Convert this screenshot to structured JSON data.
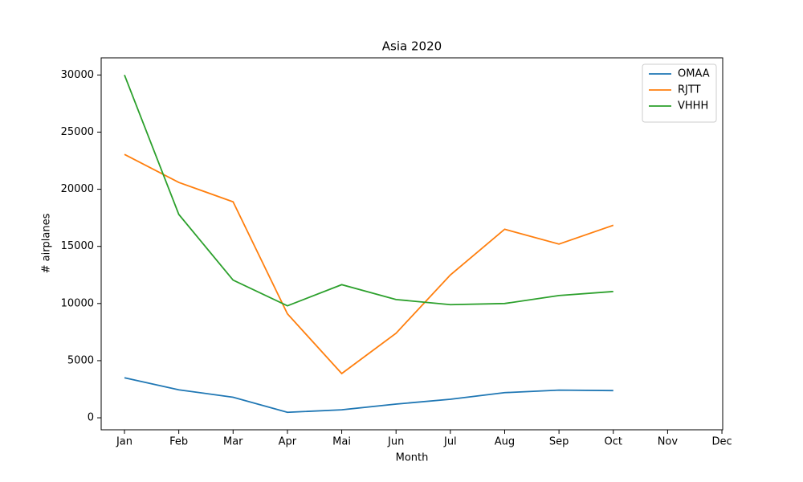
{
  "chart_data": {
    "type": "line",
    "title": "Asia 2020",
    "x_label": "Month",
    "y_label": "# airplanes",
    "categories": [
      "Jan",
      "Feb",
      "Mar",
      "Apr",
      "Mai",
      "Jun",
      "Jul",
      "Aug",
      "Sep",
      "Oct",
      "Nov",
      "Dec"
    ],
    "series": [
      {
        "name": "OMAA",
        "color": "#1f77b4",
        "values": [
          3500,
          2450,
          1800,
          480,
          700,
          1200,
          1620,
          2200,
          2420,
          2380,
          null,
          null
        ]
      },
      {
        "name": "RJTT",
        "color": "#ff7f0e",
        "values": [
          23050,
          20600,
          18900,
          9100,
          3870,
          7400,
          12500,
          16500,
          15200,
          16850,
          null,
          null
        ]
      },
      {
        "name": "VHHH",
        "color": "#2ca02c",
        "values": [
          30000,
          17800,
          12050,
          9800,
          11650,
          10350,
          9900,
          10000,
          10700,
          11050,
          null,
          null
        ]
      }
    ],
    "ylim": [
      -1050,
      31500
    ],
    "yticks": [
      0,
      5000,
      10000,
      15000,
      20000,
      25000,
      30000
    ],
    "grid": false,
    "legend": "upper right"
  }
}
